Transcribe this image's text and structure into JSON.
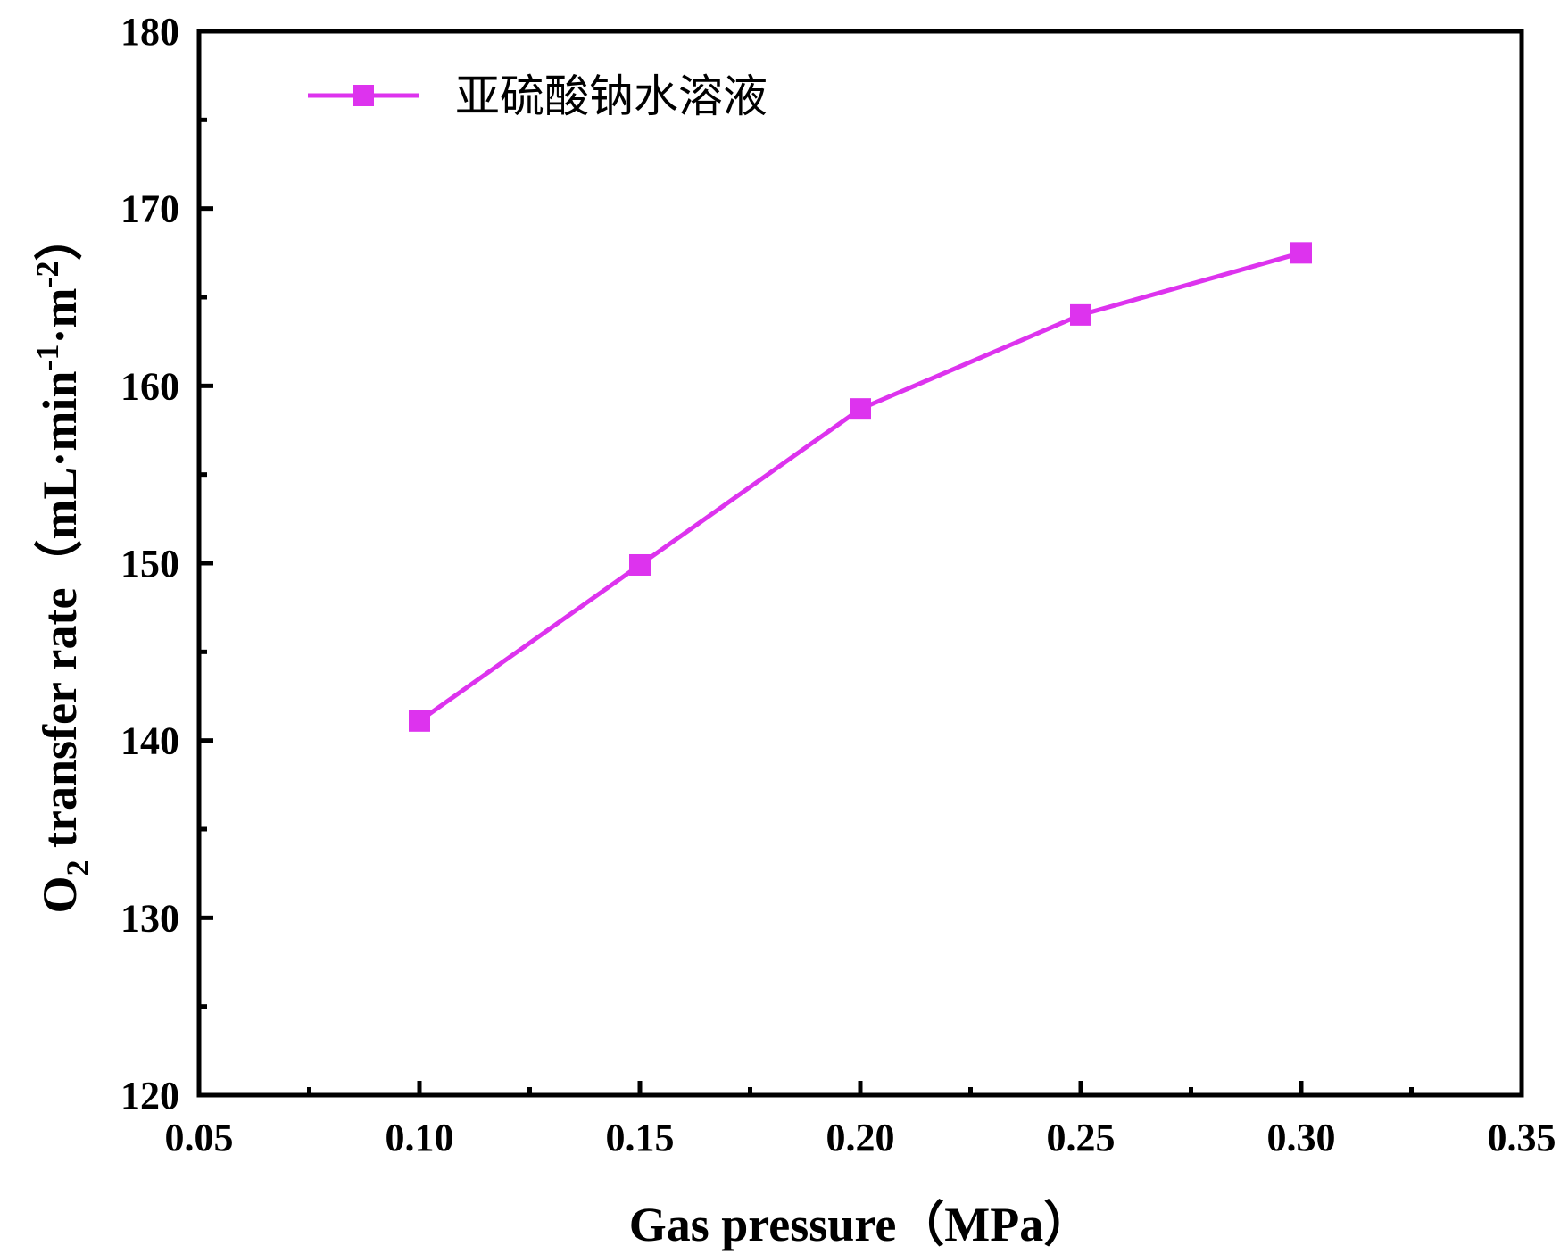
{
  "chart_data": {
    "type": "line",
    "xlabel": "Gas pressure（MPa）",
    "ylabel": {
      "prefix": "O",
      "sub": "2",
      "middle": " transfer rate（mL·min",
      "sup1": "-1",
      "middle2": "·m",
      "sup2": "-2",
      "suffix": "）"
    },
    "xlim": [
      0.05,
      0.35
    ],
    "ylim": [
      120,
      180
    ],
    "x_ticks": [
      "0.05",
      "0.10",
      "0.15",
      "0.20",
      "0.25",
      "0.30",
      "0.35"
    ],
    "y_ticks": [
      "120",
      "130",
      "140",
      "150",
      "160",
      "170",
      "180"
    ],
    "legend_position": "top-left",
    "series": [
      {
        "name": "亚硫酸钠水溶液",
        "color": "#dd33ee",
        "marker": "square",
        "x": [
          0.1,
          0.15,
          0.2,
          0.25,
          0.3
        ],
        "y": [
          141.1,
          149.9,
          158.7,
          164.0,
          167.5
        ]
      }
    ]
  }
}
